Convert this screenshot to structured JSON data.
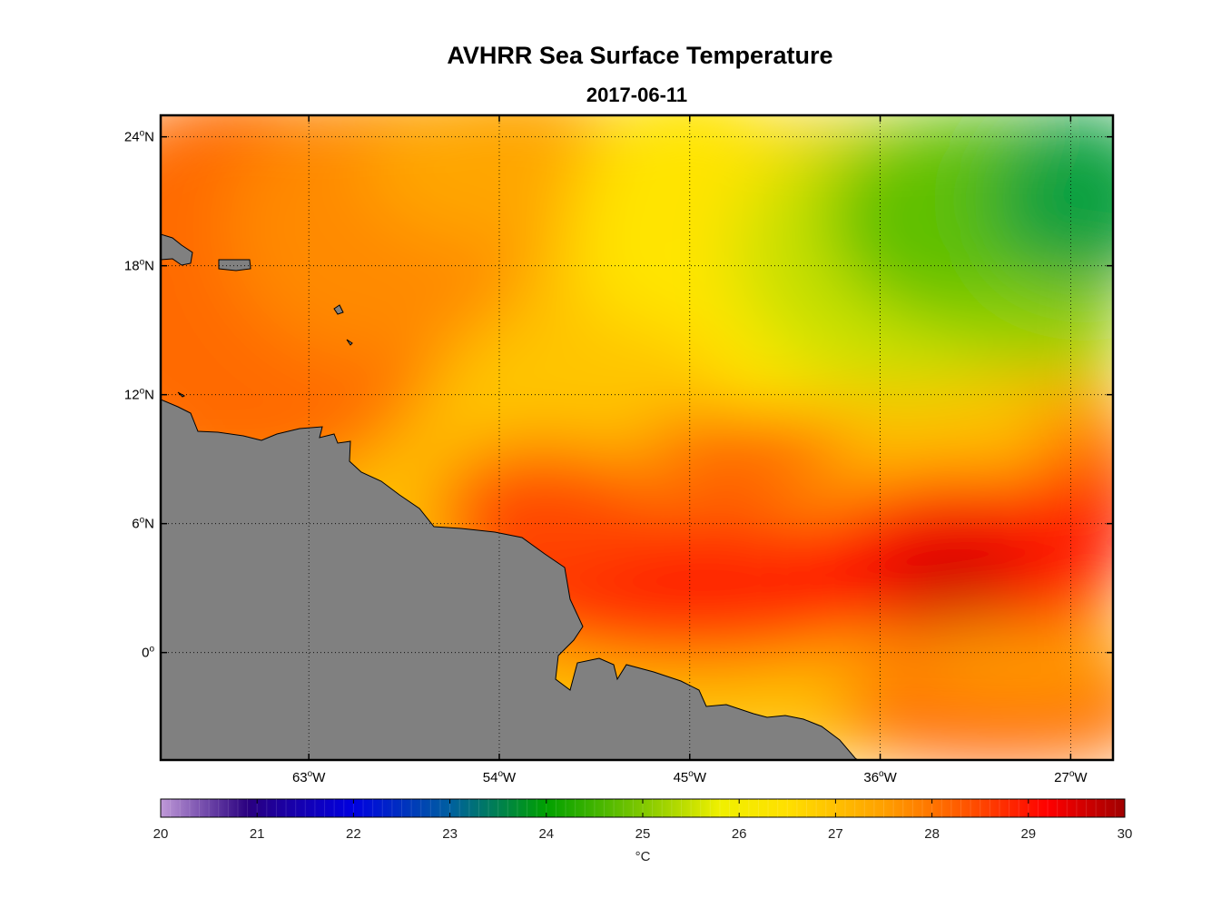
{
  "title": "AVHRR Sea Surface Temperature",
  "subtitle": "2017-06-11",
  "map": {
    "lon_range": [
      -70,
      -25
    ],
    "lat_range": [
      -5,
      25
    ],
    "lon_ticks": [
      {
        "value": -63,
        "deg": "63",
        "hemi": "W"
      },
      {
        "value": -54,
        "deg": "54",
        "hemi": "W"
      },
      {
        "value": -45,
        "deg": "45",
        "hemi": "W"
      },
      {
        "value": -36,
        "deg": "36",
        "hemi": "W"
      },
      {
        "value": -27,
        "deg": "27",
        "hemi": "W"
      }
    ],
    "lat_ticks": [
      {
        "value": 24,
        "deg": "24",
        "hemi": "N"
      },
      {
        "value": 18,
        "deg": "18",
        "hemi": "N"
      },
      {
        "value": 12,
        "deg": "12",
        "hemi": "N"
      },
      {
        "value": 6,
        "deg": "6",
        "hemi": "N"
      },
      {
        "value": 0,
        "deg": "0",
        "hemi": ""
      }
    ],
    "land_color": "#808080",
    "coast_color": "#000000"
  },
  "colorbar": {
    "min": 20,
    "max": 30,
    "tick_labels": [
      "20",
      "21",
      "22",
      "23",
      "24",
      "25",
      "26",
      "27",
      "28",
      "29",
      "30"
    ],
    "unit_label": "°C",
    "stops": [
      {
        "value": 20.0,
        "color": "#c09ad8"
      },
      {
        "value": 20.9,
        "color": "#2a0080"
      },
      {
        "value": 22.0,
        "color": "#0000e0"
      },
      {
        "value": 23.0,
        "color": "#0060a0"
      },
      {
        "value": 24.0,
        "color": "#00a000"
      },
      {
        "value": 25.0,
        "color": "#80c800"
      },
      {
        "value": 25.8,
        "color": "#f0f000"
      },
      {
        "value": 26.5,
        "color": "#ffe000"
      },
      {
        "value": 27.5,
        "color": "#ffa000"
      },
      {
        "value": 28.3,
        "color": "#ff5a00"
      },
      {
        "value": 29.2,
        "color": "#ff0000"
      },
      {
        "value": 30.0,
        "color": "#a00000"
      }
    ]
  }
}
